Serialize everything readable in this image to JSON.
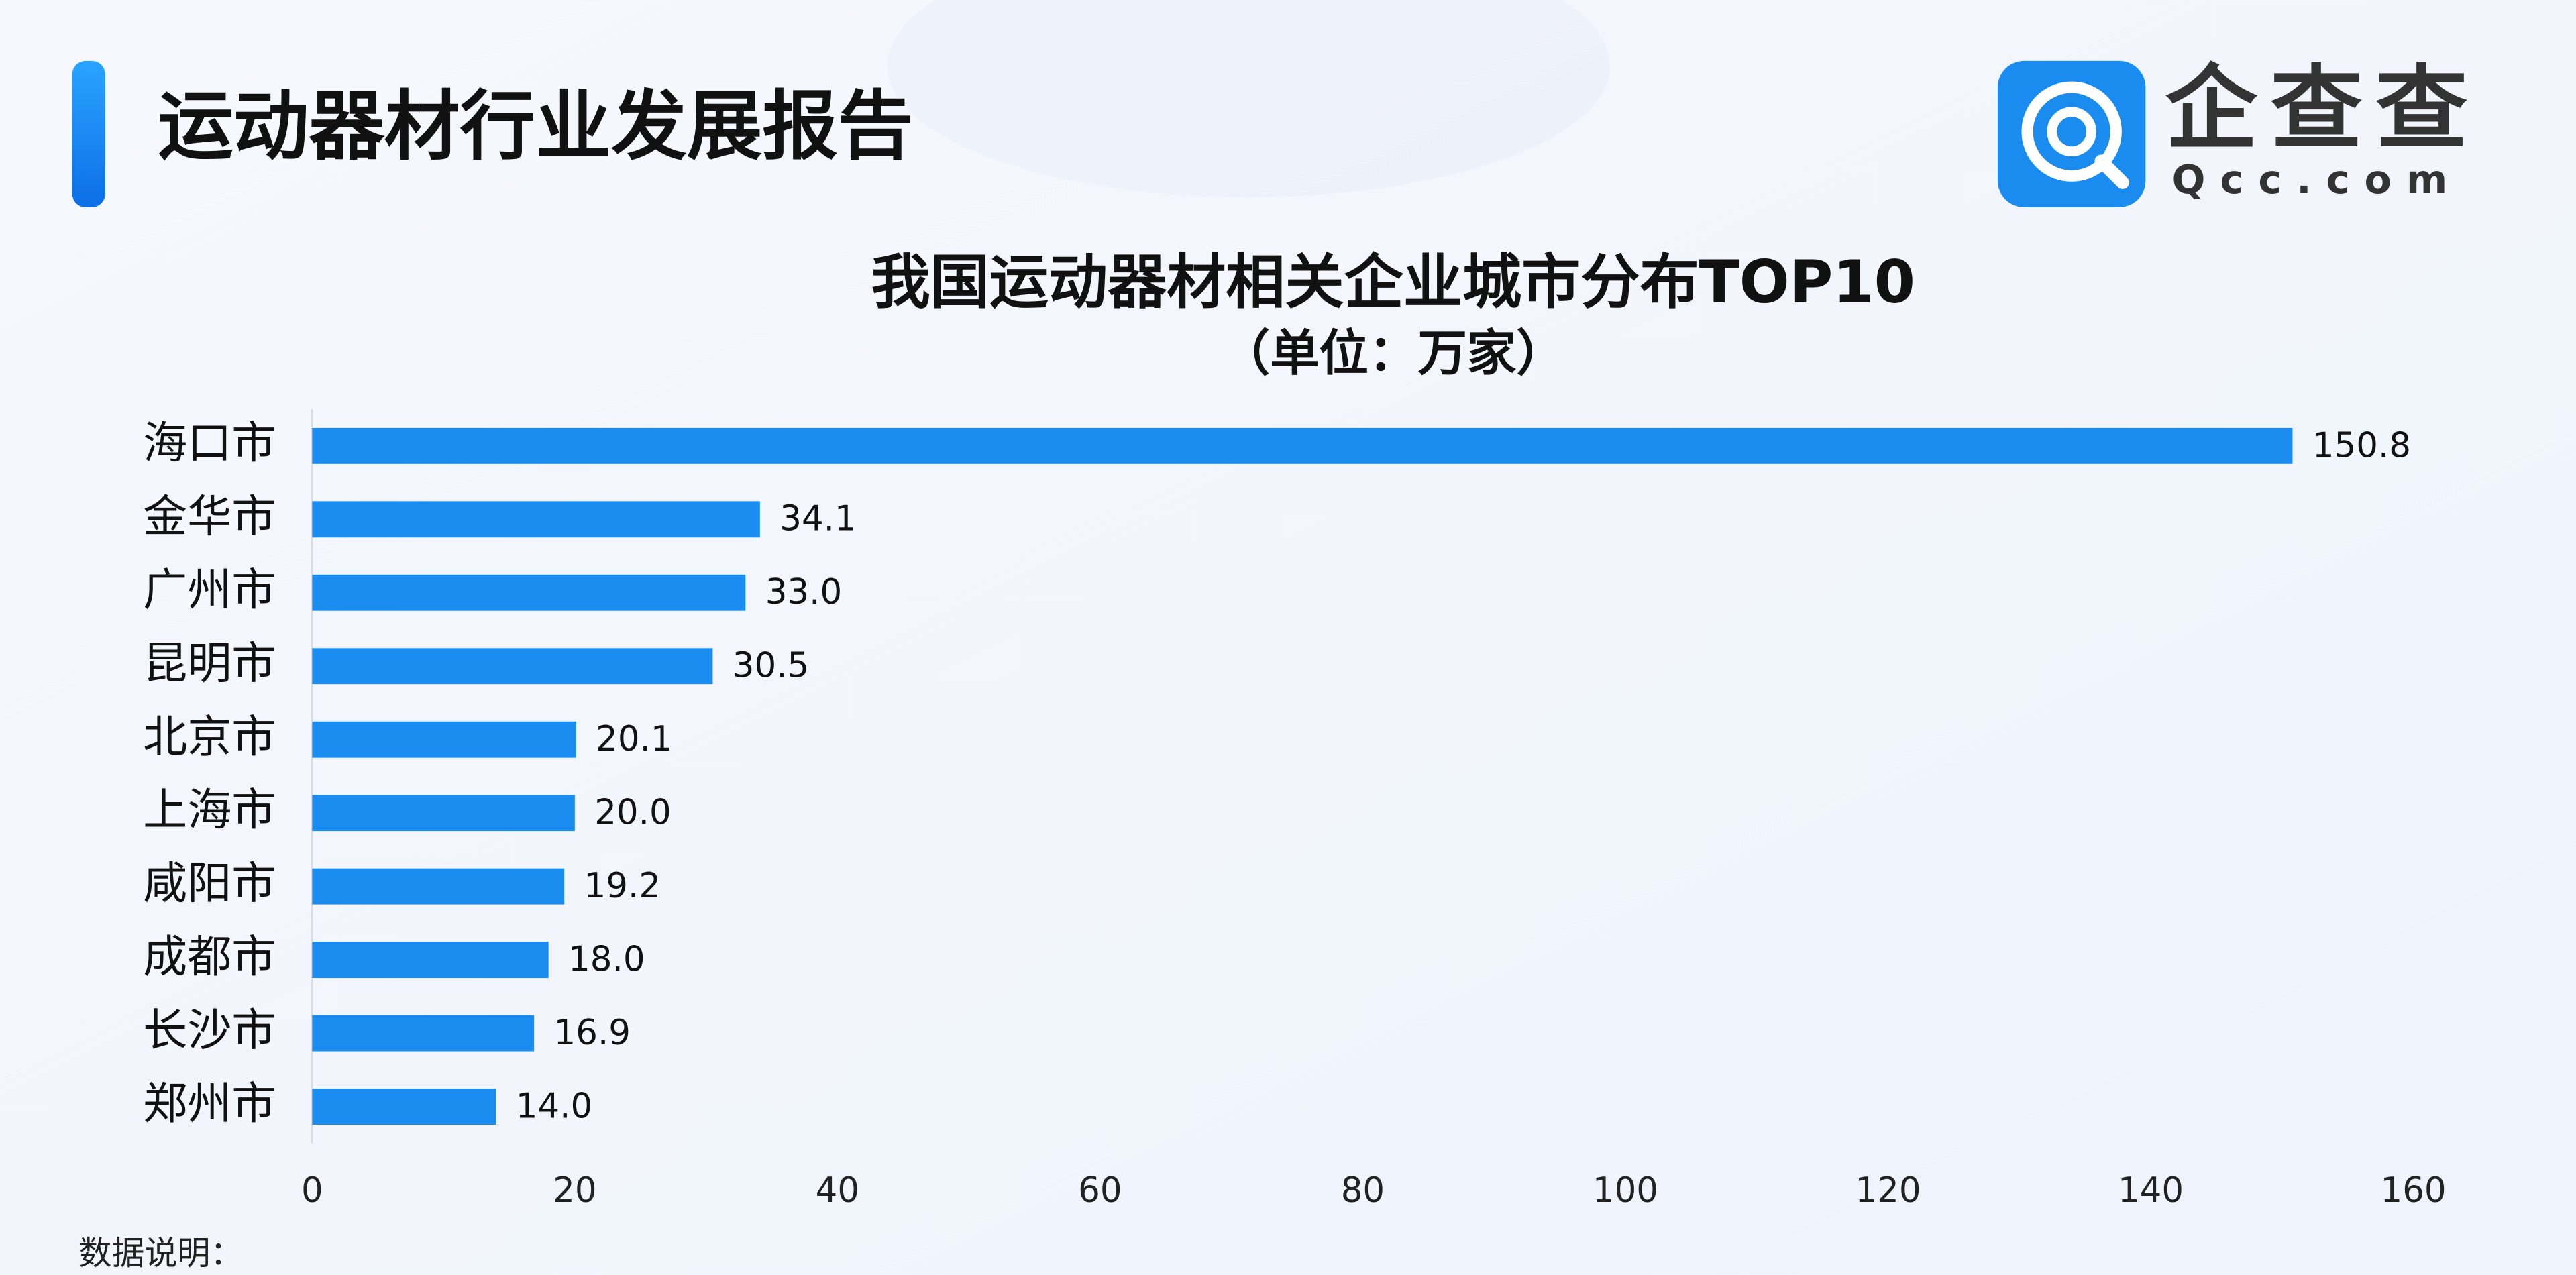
{
  "header": {
    "title": "运动器材行业发展报告"
  },
  "logo": {
    "name": "企查查",
    "domain": "Qcc.com"
  },
  "chart_data": {
    "type": "bar",
    "orientation": "horizontal",
    "title": "我国运动器材相关企业城市分布TOP10",
    "subtitle": "（单位：万家）",
    "categories": [
      "海口市",
      "金华市",
      "广州市",
      "昆明市",
      "北京市",
      "上海市",
      "咸阳市",
      "成都市",
      "长沙市",
      "郑州市"
    ],
    "values": [
      150.8,
      34.1,
      33.0,
      30.5,
      20.1,
      20.0,
      19.2,
      18.0,
      16.9,
      14.0
    ],
    "value_labels": [
      "150.8",
      "34.1",
      "33.0",
      "30.5",
      "20.1",
      "20.0",
      "19.2",
      "18.0",
      "16.9",
      "14.0"
    ],
    "color": "#1a8cf0",
    "xlim": [
      0,
      160
    ],
    "xticks": [
      0,
      20,
      40,
      60,
      80,
      100,
      120,
      140,
      160
    ]
  },
  "footer": {
    "note": "数据说明："
  }
}
